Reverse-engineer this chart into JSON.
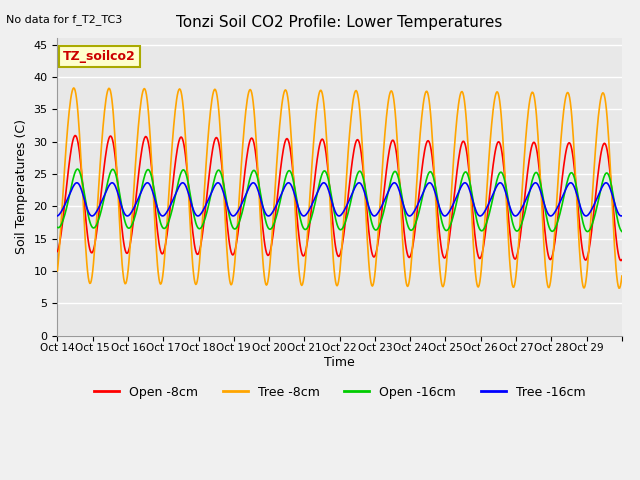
{
  "title": "Tonzi Soil CO2 Profile: Lower Temperatures",
  "subtitle": "No data for f_T2_TC3",
  "ylabel": "Soil Temperatures (C)",
  "xlabel": "Time",
  "legend_label": "TZ_soilco2",
  "ylim": [
    0,
    46
  ],
  "yticks": [
    0,
    5,
    10,
    15,
    20,
    25,
    30,
    35,
    40,
    45
  ],
  "xtick_positions": [
    0,
    1,
    2,
    3,
    4,
    5,
    6,
    7,
    8,
    9,
    10,
    11,
    12,
    13,
    14,
    15,
    16
  ],
  "xtick_labels": [
    "Oct 14",
    "Oct 15",
    "Oct 16",
    "Oct 17",
    "Oct 18",
    "Oct 19",
    "Oct 20",
    "Oct 21",
    "Oct 22",
    "Oct 23",
    "Oct 24",
    "Oct 25",
    "Oct 26",
    "Oct 27",
    "Oct 28",
    "Oct 29",
    ""
  ],
  "series": [
    {
      "name": "Open -8cm",
      "color": "#ff0000"
    },
    {
      "name": "Tree -8cm",
      "color": "#ffa500"
    },
    {
      "name": "Open -16cm",
      "color": "#00cc00"
    },
    {
      "name": "Tree -16cm",
      "color": "#0000ff"
    }
  ],
  "bg_color": "#e8e8e8",
  "grid_color": "#ffffff",
  "fig_bg": "#f0f0f0",
  "n_days": 16,
  "samples_per_day": 48
}
